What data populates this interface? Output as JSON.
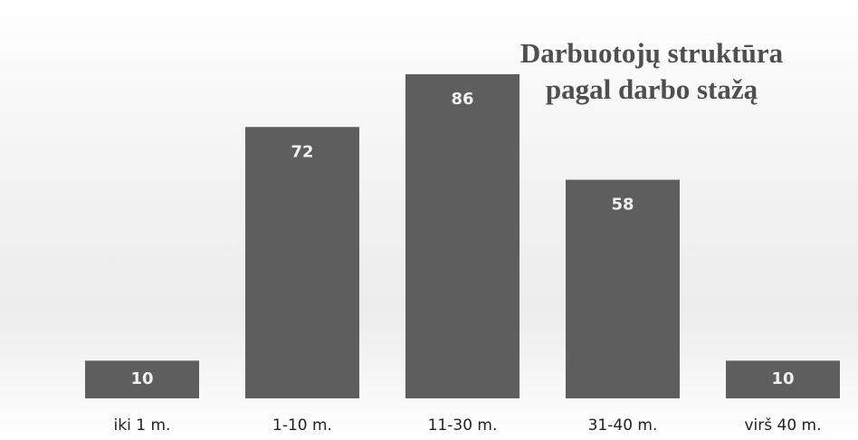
{
  "chart_data": {
    "type": "bar",
    "title": [
      "Darbuotojų struktūra",
      "pagal darbo stažą"
    ],
    "categories": [
      "iki 1 m.",
      "1-10 m.",
      "11-30 m.",
      "31-40 m.",
      "virš 40 m."
    ],
    "values": [
      10,
      72,
      86,
      58,
      10
    ],
    "color": "#5e5e5e"
  }
}
